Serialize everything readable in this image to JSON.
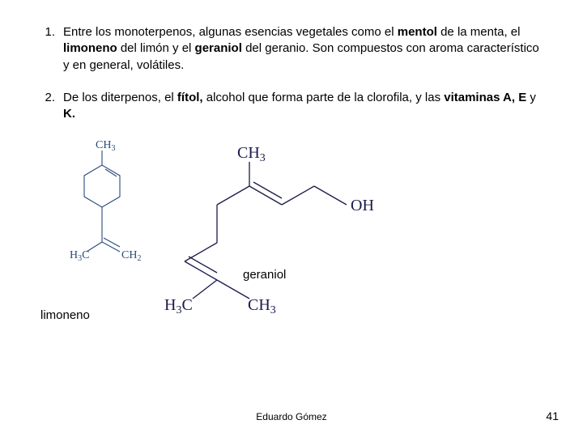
{
  "list": {
    "items": [
      {
        "num": "1.",
        "runs": [
          {
            "t": "Entre los monoterpenos, algunas esencias vegetales como el ",
            "b": false
          },
          {
            "t": "mentol",
            "b": true
          },
          {
            "t": " de la menta, el ",
            "b": false
          },
          {
            "t": "limoneno",
            "b": true
          },
          {
            "t": " del limón y el ",
            "b": false
          },
          {
            "t": "geraniol",
            "b": true
          },
          {
            "t": " del geranio. Son compuestos con aroma característico y en general, volátiles.",
            "b": false
          }
        ]
      },
      {
        "num": "2.",
        "runs": [
          {
            "t": "De los diterpenos, el ",
            "b": false
          },
          {
            "t": "fítol,",
            "b": true
          },
          {
            "t": " alcohol que forma parte de la clorofila, y las ",
            "b": false
          },
          {
            "t": "vitaminas A, E",
            "b": true
          },
          {
            "t": " y ",
            "b": false
          },
          {
            "t": "K.",
            "b": true
          }
        ]
      }
    ]
  },
  "labels": {
    "limoneno": "limoneno",
    "geraniol": "geraniol"
  },
  "footer": {
    "author": "Eduardo Gómez",
    "page": "41"
  },
  "chem": {
    "limoneno": {
      "ch3": "CH",
      "sub3": "3",
      "h3c": "H",
      "sub3b": "3",
      "c": "C",
      "ch2": "CH",
      "sub2": "2"
    },
    "geraniol": {
      "ch3": "CH",
      "sub3": "3",
      "oh": "OH",
      "h3c": "H",
      "sub3b": "3",
      "c": "C",
      "ch3b": "CH",
      "sub3c": "3"
    }
  }
}
